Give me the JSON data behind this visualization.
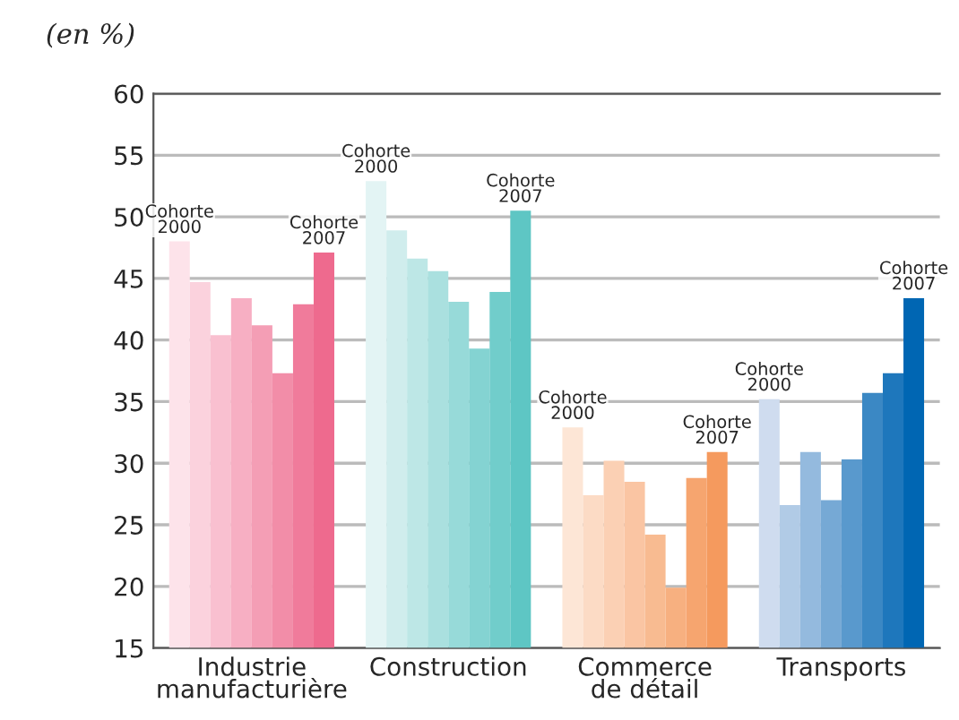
{
  "chart_data": {
    "type": "bar",
    "ylabel": "(en %)",
    "categories": [
      "Industrie\nmanufacturière",
      "Construction",
      "Commerce\nde détail",
      "Transports"
    ],
    "series": [
      {
        "values": [
          48.0,
          52.9,
          32.9,
          35.2
        ],
        "colors": [
          "#fde3ea",
          "#e3f4f4",
          "#fde6d6",
          "#cfdcef"
        ]
      },
      {
        "values": [
          44.7,
          48.9,
          27.4,
          26.6
        ],
        "colors": [
          "#fbd2dd",
          "#d0eded",
          "#fcdbc5",
          "#b1cbe6"
        ]
      },
      {
        "values": [
          40.4,
          46.6,
          30.2,
          30.9
        ],
        "colors": [
          "#f9c0d0",
          "#bde7e6",
          "#fbd0b4",
          "#94bade"
        ]
      },
      {
        "values": [
          43.4,
          45.6,
          28.5,
          27.0
        ],
        "colors": [
          "#f7afc3",
          "#aae0df",
          "#fac5a3",
          "#76a9d5"
        ]
      },
      {
        "values": [
          41.2,
          43.1,
          24.2,
          30.3
        ],
        "colors": [
          "#f49eb5",
          "#97dad9",
          "#f8bb91",
          "#5999cd"
        ]
      },
      {
        "values": [
          37.3,
          39.3,
          19.9,
          35.7
        ],
        "colors": [
          "#f28da8",
          "#84d3d2",
          "#f7b080",
          "#3b88c4"
        ]
      },
      {
        "values": [
          42.9,
          43.9,
          28.8,
          37.3
        ],
        "colors": [
          "#f07b9b",
          "#71cdcb",
          "#f6a56f",
          "#1e77bc"
        ]
      },
      {
        "values": [
          47.1,
          50.5,
          30.9,
          43.4
        ],
        "colors": [
          "#ee6a8e",
          "#5ec6c4",
          "#f59a5e",
          "#0066b3"
        ]
      }
    ],
    "ylim": [
      15,
      60
    ],
    "yticks": [
      15,
      20,
      25,
      30,
      35,
      40,
      45,
      50,
      55,
      60
    ],
    "grid": "y",
    "legend": false,
    "annotations": [
      "Cohorte\n2000",
      "Cohorte\n2007",
      "Cohorte\n2000",
      "Cohorte\n2007",
      "Cohorte\n2000",
      "Cohorte\n2007",
      "Cohorte\n2000",
      "Cohorte\n2007"
    ]
  }
}
